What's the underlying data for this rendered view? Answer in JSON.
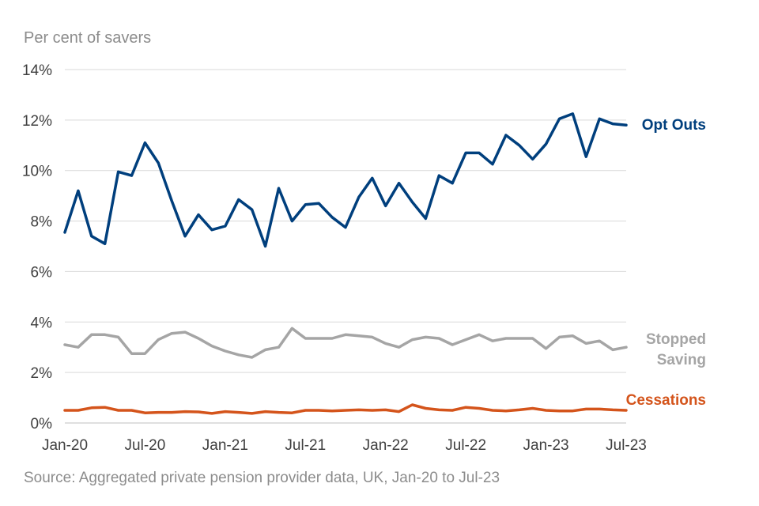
{
  "chart_data": {
    "type": "line",
    "ylabel": "Per cent of savers",
    "source": "Source: Aggregated private pension provider data, UK, Jan-20 to Jul-23",
    "ylim": [
      0,
      14
    ],
    "y_ticks": [
      0,
      2,
      4,
      6,
      8,
      10,
      12,
      14
    ],
    "y_tick_labels": [
      "0%",
      "2%",
      "4%",
      "6%",
      "8%",
      "10%",
      "12%",
      "14%"
    ],
    "x_tick_labels": [
      "Jan-20",
      "Jul-20",
      "Jan-21",
      "Jul-21",
      "Jan-22",
      "Jul-22",
      "Jan-23",
      "Jul-23"
    ],
    "x_tick_index": [
      0,
      6,
      12,
      18,
      24,
      30,
      36,
      42
    ],
    "grid": true,
    "x": [
      "Jan-20",
      "Feb-20",
      "Mar-20",
      "Apr-20",
      "May-20",
      "Jun-20",
      "Jul-20",
      "Aug-20",
      "Sep-20",
      "Oct-20",
      "Nov-20",
      "Dec-20",
      "Jan-21",
      "Feb-21",
      "Mar-21",
      "Apr-21",
      "May-21",
      "Jun-21",
      "Jul-21",
      "Aug-21",
      "Sep-21",
      "Oct-21",
      "Nov-21",
      "Dec-21",
      "Jan-22",
      "Feb-22",
      "Mar-22",
      "Apr-22",
      "May-22",
      "Jun-22",
      "Jul-22",
      "Aug-22",
      "Sep-22",
      "Oct-22",
      "Nov-22",
      "Dec-22",
      "Jan-23",
      "Feb-23",
      "Mar-23",
      "Apr-23",
      "May-23",
      "Jun-23",
      "Jul-23"
    ],
    "series": [
      {
        "name": "Opt Outs",
        "color": "#003f7d",
        "values": [
          7.55,
          9.2,
          7.4,
          7.1,
          9.95,
          9.8,
          11.1,
          10.3,
          8.8,
          7.4,
          8.25,
          7.65,
          7.8,
          8.85,
          8.45,
          7.0,
          9.3,
          8.0,
          8.65,
          8.7,
          8.15,
          7.75,
          8.95,
          9.7,
          8.6,
          9.5,
          8.75,
          8.1,
          9.8,
          9.5,
          10.7,
          10.7,
          10.25,
          11.4,
          11.0,
          10.45,
          11.05,
          12.05,
          12.25,
          10.55,
          12.05,
          11.85,
          11.8
        ]
      },
      {
        "name": "Stopped Saving",
        "label_lines": [
          "Stopped",
          "Saving"
        ],
        "color": "#a5a5a5",
        "values": [
          3.1,
          3.0,
          3.5,
          3.5,
          3.4,
          2.75,
          2.75,
          3.3,
          3.55,
          3.6,
          3.35,
          3.05,
          2.85,
          2.7,
          2.6,
          2.9,
          3.0,
          3.75,
          3.35,
          3.35,
          3.35,
          3.5,
          3.45,
          3.4,
          3.15,
          3.0,
          3.3,
          3.4,
          3.35,
          3.1,
          3.3,
          3.5,
          3.25,
          3.35,
          3.35,
          3.35,
          2.95,
          3.4,
          3.45,
          3.15,
          3.25,
          2.9,
          3.0
        ]
      },
      {
        "name": "Cessations",
        "color": "#d4541b",
        "values": [
          0.5,
          0.5,
          0.6,
          0.62,
          0.5,
          0.5,
          0.4,
          0.42,
          0.42,
          0.45,
          0.44,
          0.38,
          0.45,
          0.42,
          0.38,
          0.45,
          0.42,
          0.4,
          0.5,
          0.5,
          0.48,
          0.5,
          0.52,
          0.5,
          0.52,
          0.45,
          0.72,
          0.58,
          0.52,
          0.5,
          0.62,
          0.58,
          0.5,
          0.48,
          0.52,
          0.58,
          0.5,
          0.48,
          0.48,
          0.55,
          0.55,
          0.52,
          0.5
        ]
      }
    ]
  }
}
